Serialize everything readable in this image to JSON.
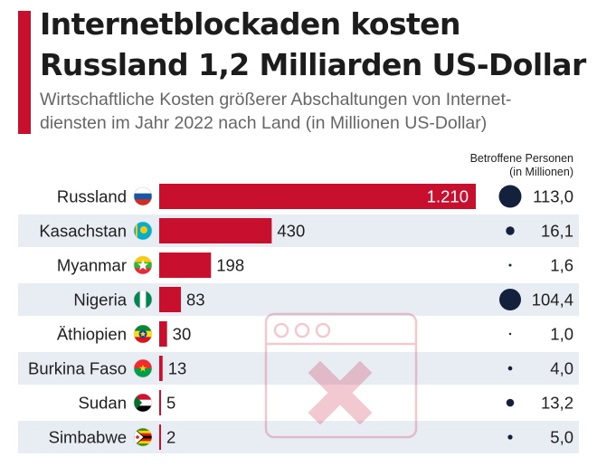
{
  "header": {
    "title_line1": "Internetblockaden kosten",
    "title_line2": "Russland 1,2 Milliarden US-Dollar",
    "subtitle_line1": "Wirtschaftliche Kosten größerer Abschaltungen von Internet-",
    "subtitle_line2": "diensten im Jahr 2022 nach Land (in Millionen US-Dollar)",
    "people_header_line1": "Betroffene Personen",
    "people_header_line2": "(in Millionen)"
  },
  "colors": {
    "bar": "#c8102e",
    "stripe": "#e8edf4",
    "bubble": "#14213d",
    "watermark": "#c8102e"
  },
  "chart_data": {
    "type": "bar",
    "orientation": "horizontal",
    "title": "Internetblockaden kosten Russland 1,2 Milliarden US-Dollar",
    "subtitle": "Wirtschaftliche Kosten größerer Abschaltungen von Internetdiensten im Jahr 2022 nach Land (in Millionen US-Dollar)",
    "xlabel": "",
    "ylabel": "",
    "xlim": [
      0,
      1210
    ],
    "grid": false,
    "categories": [
      "Russland",
      "Kasachstan",
      "Myanmar",
      "Nigeria",
      "Äthiopien",
      "Burkina Faso",
      "Sudan",
      "Simbabwe"
    ],
    "flags": [
      "russia-flag",
      "kazakhstan-flag",
      "myanmar-flag",
      "nigeria-flag",
      "ethiopia-flag",
      "burkina-faso-flag",
      "sudan-flag",
      "zimbabwe-flag"
    ],
    "series": [
      {
        "name": "Wirtschaftliche Kosten (Mio. US-Dollar)",
        "values": [
          1210,
          430,
          198,
          83,
          30,
          13,
          5,
          2
        ],
        "labels": [
          "1.210",
          "430",
          "198",
          "83",
          "30",
          "13",
          "5",
          "2"
        ]
      },
      {
        "name": "Betroffene Personen (in Millionen)",
        "values": [
          113.0,
          16.1,
          1.6,
          104.4,
          1.0,
          4.0,
          13.2,
          5.0
        ],
        "labels": [
          "113,0",
          "16,1",
          "1,6",
          "104,4",
          "1,0",
          "4,0",
          "13,2",
          "5,0"
        ]
      }
    ]
  }
}
